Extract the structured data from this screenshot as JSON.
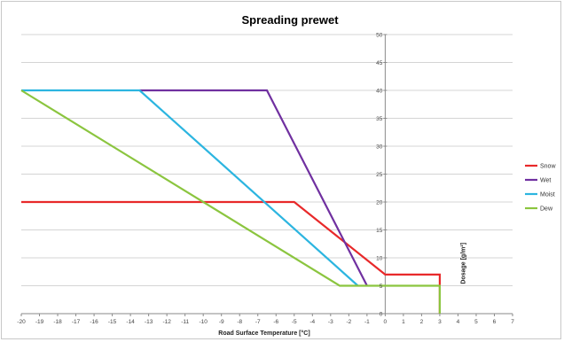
{
  "chart_data": {
    "type": "line",
    "title": "Spreading prewet",
    "xlabel": "Road Surface Temperature [°C]",
    "ylabel": "Dosage [g/m²]",
    "xlim": [
      -20,
      7
    ],
    "ylim": [
      0,
      50
    ],
    "x_ticks": [
      -20,
      -19,
      -18,
      -17,
      -16,
      -15,
      -14,
      -13,
      -12,
      -11,
      -10,
      -9,
      -8,
      -7,
      -6,
      -5,
      -4,
      -3,
      -2,
      -1,
      0,
      1,
      2,
      3,
      4,
      5,
      6,
      7
    ],
    "y_ticks": [
      0,
      5,
      10,
      15,
      20,
      25,
      30,
      35,
      40,
      45,
      50
    ],
    "y_axis_at_x": 0,
    "grid": true,
    "legend_position": "right",
    "series": [
      {
        "name": "Snow",
        "color": "#e8292a",
        "points": [
          [
            -20,
            20
          ],
          [
            -5,
            20
          ],
          [
            0,
            7
          ],
          [
            3,
            7
          ],
          [
            3,
            0
          ]
        ]
      },
      {
        "name": "Wet",
        "color": "#7030a0",
        "points": [
          [
            -13.5,
            40
          ],
          [
            -6.5,
            40
          ],
          [
            -1,
            5
          ]
        ]
      },
      {
        "name": "Moist",
        "color": "#2cb5e0",
        "points": [
          [
            -20,
            40
          ],
          [
            -13.5,
            40
          ],
          [
            -1.5,
            5
          ]
        ]
      },
      {
        "name": "Dew",
        "color": "#8bc53f",
        "points": [
          [
            -20,
            40
          ],
          [
            -2.5,
            5
          ],
          [
            3,
            5
          ],
          [
            3,
            0
          ]
        ]
      }
    ]
  }
}
